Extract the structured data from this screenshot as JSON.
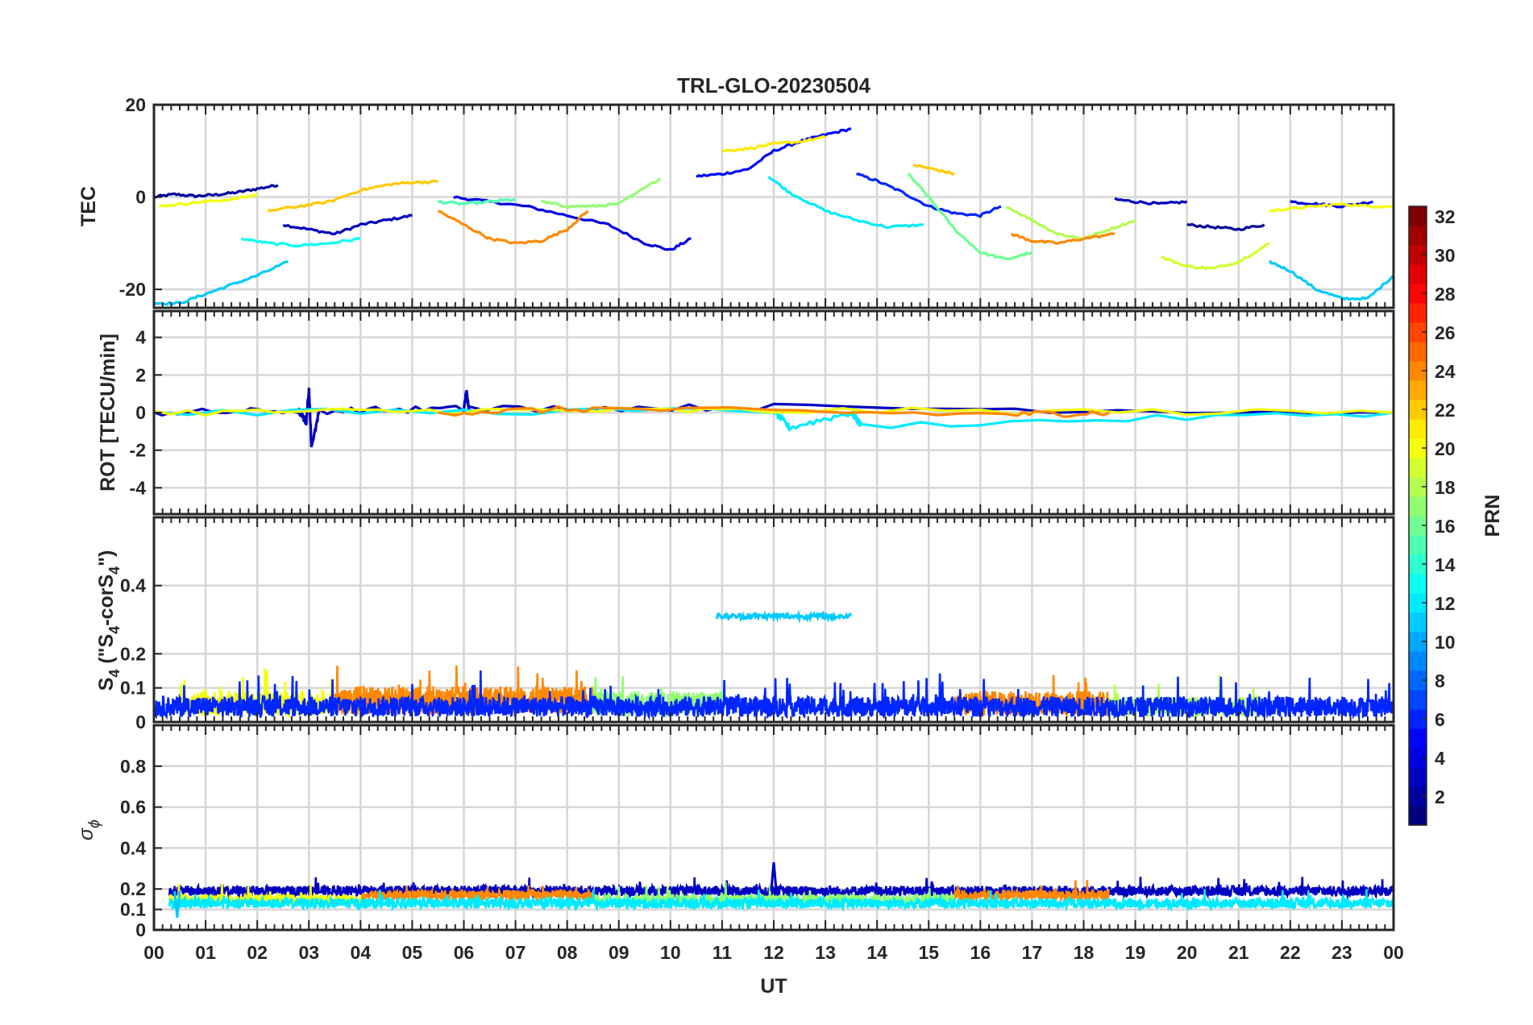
{
  "chart_data": {
    "type": "line",
    "title": "TRL-GLO-20230504",
    "xlabel": "UT",
    "x_tick_labels": [
      "00",
      "01",
      "02",
      "03",
      "04",
      "05",
      "06",
      "07",
      "08",
      "09",
      "10",
      "11",
      "12",
      "13",
      "14",
      "15",
      "16",
      "17",
      "18",
      "19",
      "20",
      "21",
      "22",
      "23",
      "00"
    ],
    "xlim": [
      0,
      24
    ],
    "colorbar": {
      "label": "PRN",
      "range": [
        1,
        32
      ],
      "tick_labels": [
        "2",
        "4",
        "6",
        "8",
        "10",
        "12",
        "14",
        "16",
        "18",
        "20",
        "22",
        "24",
        "26",
        "28",
        "30",
        "32"
      ],
      "tick_values": [
        2,
        4,
        6,
        8,
        10,
        12,
        14,
        16,
        18,
        20,
        22,
        24,
        26,
        28,
        30,
        32
      ],
      "colormap": "jet"
    },
    "panels": [
      {
        "id": "tec",
        "ylabel": "TEC",
        "ylim": [
          -24,
          20
        ],
        "ytick_labels": [
          "20",
          "0",
          "-20"
        ],
        "ytick_values": [
          20,
          0,
          -20
        ],
        "series": [
          {
            "prn": 2,
            "x": [
              0,
              0.4,
              0.8,
              1.2,
              1.6,
              2.0,
              2.4
            ],
            "y": [
              0,
              0.6,
              0.2,
              0.5,
              1.0,
              1.8,
              2.6
            ]
          },
          {
            "prn": 3,
            "x": [
              2.5,
              3.0,
              3.5,
              4.0,
              4.5,
              5.0
            ],
            "y": [
              -6,
              -7,
              -8,
              -6,
              -5,
              -4
            ]
          },
          {
            "prn": 4,
            "x": [
              5.8,
              6.5,
              7.2,
              8.0,
              8.8,
              9.5,
              10.0,
              10.4
            ],
            "y": [
              0,
              -1,
              -2,
              -4,
              -6,
              -10,
              -11.5,
              -9
            ]
          },
          {
            "prn": 5,
            "x": [
              10.5,
              11.0,
              11.5,
              12.0,
              12.5,
              13.0,
              13.5
            ],
            "y": [
              4.5,
              5,
              6,
              10,
              12,
              13.5,
              14.8
            ]
          },
          {
            "prn": 6,
            "x": [
              13.6,
              14.0,
              14.5,
              15.0,
              15.5,
              16.0,
              16.4
            ],
            "y": [
              5,
              3.5,
              1,
              -2,
              -3.5,
              -4,
              -2
            ]
          },
          {
            "prn": 3,
            "x": [
              18.6,
              19.0,
              19.5,
              20.0
            ],
            "y": [
              -0.5,
              -1,
              -1.5,
              -1
            ]
          },
          {
            "prn": 2,
            "x": [
              20.0,
              20.5,
              21.0,
              21.5
            ],
            "y": [
              -6,
              -6.5,
              -7,
              -6
            ]
          },
          {
            "prn": 4,
            "x": [
              22.0,
              22.5,
              23.0,
              23.6
            ],
            "y": [
              -1,
              -1.5,
              -2,
              -1
            ]
          },
          {
            "prn": 11,
            "x": [
              0,
              0.5,
              1.0,
              1.5,
              2.0,
              2.6
            ],
            "y": [
              -23,
              -23,
              -21,
              -19,
              -17,
              -14
            ]
          },
          {
            "prn": 11,
            "x": [
              21.6,
              22.0,
              22.5,
              23.0,
              23.5,
              24.0
            ],
            "y": [
              -14,
              -16,
              -20,
              -22,
              -22,
              -17
            ]
          },
          {
            "prn": 12,
            "x": [
              11.9,
              12.3,
              13.0,
              13.6,
              14.2,
              14.9
            ],
            "y": [
              4.5,
              1,
              -3,
              -5,
              -6.5,
              -6
            ]
          },
          {
            "prn": 13,
            "x": [
              1.7,
              2.2,
              2.8,
              3.4,
              4.0
            ],
            "y": [
              -9,
              -10,
              -10.5,
              -10,
              -9
            ]
          },
          {
            "prn": 15,
            "x": [
              5.5,
              6.0,
              6.5,
              7.0
            ],
            "y": [
              -1,
              -1.5,
              -1,
              -0.5
            ]
          },
          {
            "prn": 16,
            "x": [
              14.6,
              15.0,
              15.5,
              16.0,
              16.5,
              17.0
            ],
            "y": [
              5,
              0,
              -7,
              -12,
              -13.5,
              -12
            ]
          },
          {
            "prn": 17,
            "x": [
              7.5,
              8.0,
              8.5,
              9.0,
              9.8
            ],
            "y": [
              -1,
              -2,
              -2,
              -1.5,
              4
            ]
          },
          {
            "prn": 18,
            "x": [
              16.5,
              17.0,
              17.5,
              18.0,
              18.5,
              19.0
            ],
            "y": [
              -2,
              -5,
              -8,
              -9,
              -7,
              -5
            ]
          },
          {
            "prn": 19,
            "x": [
              19.5,
              20.0,
              20.5,
              21.0,
              21.6
            ],
            "y": [
              -13,
              -15,
              -15.5,
              -14,
              -10
            ]
          },
          {
            "prn": 20,
            "x": [
              0.1,
              0.5,
              1.0,
              1.5,
              2.0
            ],
            "y": [
              -2,
              -1.5,
              -1,
              -0.5,
              0.5
            ]
          },
          {
            "prn": 20,
            "x": [
              21.6,
              22.0,
              22.5,
              23.0,
              23.5,
              24.0
            ],
            "y": [
              -3,
              -2.5,
              -2,
              -1.5,
              -2,
              -2
            ]
          },
          {
            "prn": 21,
            "x": [
              11.0,
              11.5,
              12.0,
              12.5,
              13.0
            ],
            "y": [
              10,
              10.5,
              11.5,
              12,
              13
            ]
          },
          {
            "prn": 22,
            "x": [
              2.2,
              2.8,
              3.4,
              4.0,
              4.6,
              5.0,
              5.5
            ],
            "y": [
              -3,
              -2,
              -1,
              1.5,
              2.8,
              3.2,
              3.3
            ]
          },
          {
            "prn": 22,
            "x": [
              14.7,
              15.1,
              15.5
            ],
            "y": [
              7,
              6,
              5
            ]
          },
          {
            "prn": 24,
            "x": [
              5.5,
              6.0,
              6.5,
              7.0,
              7.5,
              8.0,
              8.4
            ],
            "y": [
              -3,
              -6,
              -9,
              -10,
              -9.5,
              -7,
              -3
            ]
          },
          {
            "prn": 24,
            "x": [
              16.6,
              17.0,
              17.5,
              18.0,
              18.6
            ],
            "y": [
              -8,
              -9.5,
              -10,
              -9,
              -8
            ]
          }
        ]
      },
      {
        "id": "rot",
        "ylabel": "ROT [TECU/min]",
        "ylim": [
          -5.4,
          5.4
        ],
        "ytick_labels": [
          "4",
          "2",
          "0",
          "-2",
          "-4"
        ],
        "ytick_values": [
          4,
          2,
          0,
          -2,
          -4
        ],
        "series": [
          {
            "prn": 3,
            "x": [
              0,
              2.8,
              2.95,
              3.0,
              3.05,
              3.2,
              6.0,
              6.05,
              6.1,
              12.0,
              24.0
            ],
            "y": [
              0,
              0.1,
              -0.5,
              1.3,
              -1.8,
              0.1,
              0.2,
              1.1,
              0.2,
              0.3,
              0
            ]
          },
          {
            "prn": 12,
            "x": [
              0,
              12.0,
              12.3,
              13.5,
              13.7,
              24.0
            ],
            "y": [
              0,
              0.1,
              -0.8,
              0,
              -0.7,
              0
            ]
          },
          {
            "prn": 20,
            "x": [
              0,
              6.0,
              12.0,
              24.0
            ],
            "y": [
              0,
              0.1,
              0.1,
              0
            ]
          },
          {
            "prn": 24,
            "x": [
              5.5,
              8.5,
              16.5,
              18.5
            ],
            "y": [
              0,
              0.2,
              -0.1,
              0
            ]
          }
        ]
      },
      {
        "id": "s4",
        "ylabel": "S4 (\"S4-corS4\")",
        "ylabel_display": "S",
        "ylabel_sub": "4",
        "ylabel_rest": " (\"S",
        "ylabel_sub2": "4",
        "ylabel_rest2": "-corS",
        "ylabel_sub3": "4",
        "ylabel_end": "\")",
        "ylim": [
          0,
          0.6
        ],
        "ytick_labels": [
          "0.4",
          "0.2",
          "0.1",
          "0"
        ],
        "ytick_values": [
          0.4,
          0.2,
          0.1,
          0
        ],
        "plateau": {
          "prn": 11,
          "x": [
            10.9,
            13.5
          ],
          "y": 0.31
        },
        "bands": [
          {
            "prn": 24,
            "x": [
              3.5,
              8.5
            ],
            "level": 0.07
          },
          {
            "prn": 17,
            "x": [
              8.5,
              11.0
            ],
            "level": 0.06
          },
          {
            "prn": 24,
            "x": [
              15.5,
              18.5
            ],
            "level": 0.06
          },
          {
            "prn": 18,
            "x": [
              18.5,
              21.5
            ],
            "level": 0.05
          },
          {
            "prn": 20,
            "x": [
              0.5,
              3.5
            ],
            "level": 0.06
          },
          {
            "prn": 6,
            "x": [
              0,
              24
            ],
            "level": 0.05
          }
        ]
      },
      {
        "id": "sigma",
        "ylabel": "σϕ",
        "ylabel_display": "σ",
        "ylabel_sub": "ϕ",
        "ylim": [
          0,
          1
        ],
        "ytick_labels": [
          "0.8",
          "0.6",
          "0.4",
          "0.2",
          "0.1",
          "0"
        ],
        "ytick_values": [
          0.8,
          0.6,
          0.4,
          0.2,
          0.1,
          0
        ],
        "bands": [
          {
            "prn": 3,
            "x": [
              0.3,
              24
            ],
            "level": 0.19
          },
          {
            "prn": 24,
            "x": [
              4.0,
              8.5
            ],
            "level": 0.17
          },
          {
            "prn": 24,
            "x": [
              15.5,
              18.5
            ],
            "level": 0.17
          },
          {
            "prn": 17,
            "x": [
              8.5,
              15.5
            ],
            "level": 0.15
          },
          {
            "prn": 20,
            "x": [
              0.3,
              4.0
            ],
            "level": 0.15
          },
          {
            "prn": 12,
            "x": [
              0.3,
              24
            ],
            "level": 0.13
          }
        ],
        "spikes": [
          {
            "prn": 3,
            "x": 12.0,
            "y": 0.33
          },
          {
            "prn": 11,
            "x": 0.45,
            "y": 0.06
          }
        ]
      }
    ]
  }
}
